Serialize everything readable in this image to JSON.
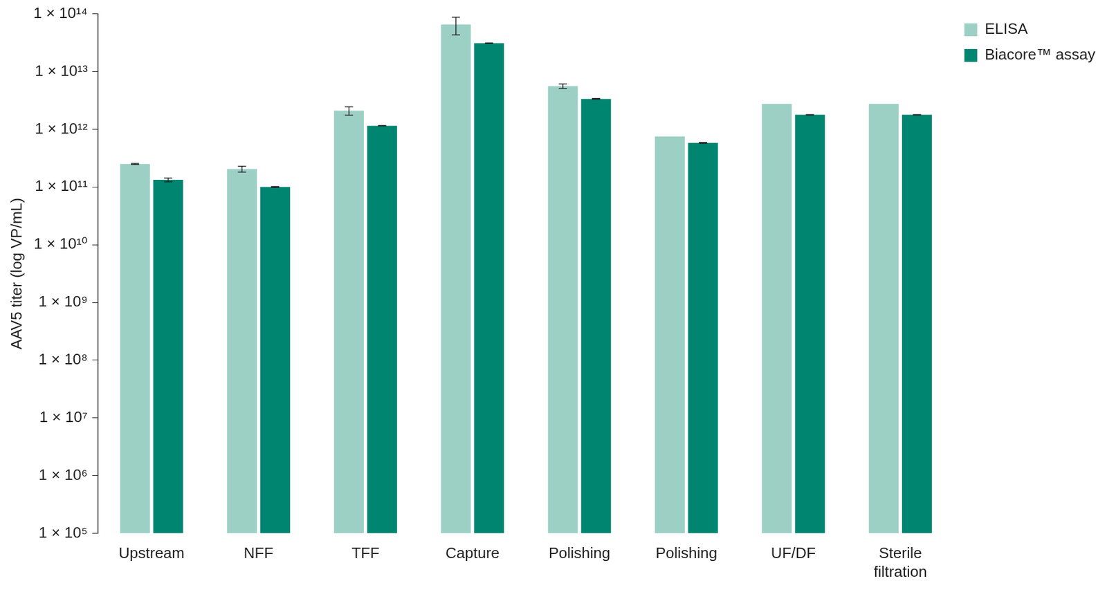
{
  "chart_data": {
    "type": "bar",
    "log": "y",
    "grid": false,
    "legend": "right",
    "y_label": "AAV5 titer (log VP/mL)",
    "categories": [
      "Upstream",
      "NFF",
      "TFF",
      "Capture",
      "Polishing",
      "Polishing",
      "UF/DF",
      "Sterile filtration"
    ],
    "series": [
      {
        "name": "ELISA",
        "color": "#9dd0c5",
        "values": [
          250000000000.0,
          205000000000.0,
          2100000000000.0,
          65000000000000.0,
          5600000000000.0,
          750000000000.0,
          2750000000000.0,
          2750000000000.0
        ],
        "errors": [
          5000000000.0,
          24000000000.0,
          350000000000.0,
          22000000000000.0,
          500000000000.0,
          null,
          null,
          null
        ]
      },
      {
        "name": "Biacore™ assay",
        "color": "#008570",
        "values": [
          133000000000.0,
          100000000000.0,
          1150000000000.0,
          31000000000000.0,
          3350000000000.0,
          580000000000.0,
          1780000000000.0,
          1780000000000.0
        ],
        "errors": [
          10000000000.0,
          2000000000.0,
          10000000000.0,
          300000000000.0,
          50000000000.0,
          10000000000.0,
          20000000000.0,
          20000000000.0
        ]
      }
    ],
    "ylim": [
      100000.0,
      100000000000000.0
    ],
    "yticks": [
      {
        "value": 100000.0,
        "label": "1 × 10⁵"
      },
      {
        "value": 1000000.0,
        "label": "1 × 10⁶"
      },
      {
        "value": 10000000.0,
        "label": "1 × 10⁷"
      },
      {
        "value": 100000000.0,
        "label": "1 × 10⁸"
      },
      {
        "value": 1000000000.0,
        "label": "1 × 10⁹"
      },
      {
        "value": 10000000000.0,
        "label": "1 × 10¹⁰"
      },
      {
        "value": 100000000000.0,
        "label": "1 × 10¹¹"
      },
      {
        "value": 1000000000000.0,
        "label": "1 × 10¹²"
      },
      {
        "value": 10000000000000.0,
        "label": "1 × 10¹³"
      },
      {
        "value": 100000000000000.0,
        "label": "1 × 10¹⁴"
      }
    ]
  }
}
